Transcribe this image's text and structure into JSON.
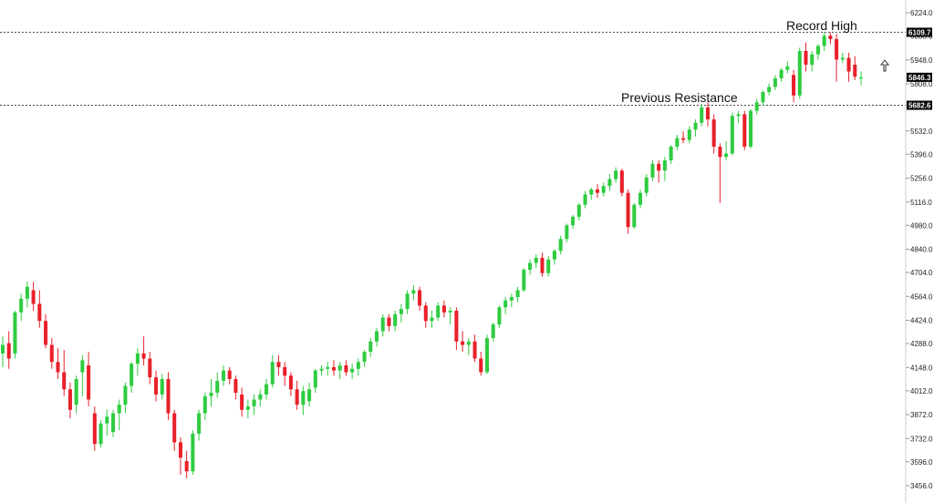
{
  "chart_data": {
    "type": "candlestick",
    "ylim": [
      3456.0,
      6224.0
    ],
    "y_ticks": [
      "6224.0",
      "6088.0",
      "5948.0",
      "5808.0",
      "5532.0",
      "5396.0",
      "5256.0",
      "5116.0",
      "4980.0",
      "4840.0",
      "4704.0",
      "4564.0",
      "4424.0",
      "4288.0",
      "4148.0",
      "4012.0",
      "3872.0",
      "3732.0",
      "3596.0",
      "3456.0"
    ],
    "levels": [
      {
        "value": 6109.7,
        "label": "6109.7",
        "annotation": "Record High"
      },
      {
        "value": 5682.6,
        "label": "5682.6",
        "annotation": "Previous Resistance"
      }
    ],
    "last_price": {
      "value": 5846.3,
      "label": "5846.3"
    },
    "up_color": "#2ecc40",
    "down_color": "#e8202a",
    "candles": [
      {
        "o": 4230,
        "h": 4330,
        "l": 4150,
        "c": 4280
      },
      {
        "o": 4290,
        "h": 4360,
        "l": 4140,
        "c": 4200
      },
      {
        "o": 4230,
        "h": 4480,
        "l": 4200,
        "c": 4470
      },
      {
        "o": 4470,
        "h": 4580,
        "l": 4420,
        "c": 4550
      },
      {
        "o": 4550,
        "h": 4650,
        "l": 4500,
        "c": 4620
      },
      {
        "o": 4600,
        "h": 4650,
        "l": 4480,
        "c": 4520
      },
      {
        "o": 4520,
        "h": 4600,
        "l": 4380,
        "c": 4420
      },
      {
        "o": 4420,
        "h": 4460,
        "l": 4260,
        "c": 4280
      },
      {
        "o": 4280,
        "h": 4320,
        "l": 4140,
        "c": 4180
      },
      {
        "o": 4180,
        "h": 4260,
        "l": 4080,
        "c": 4120
      },
      {
        "o": 4120,
        "h": 4250,
        "l": 3980,
        "c": 4020
      },
      {
        "o": 4020,
        "h": 4060,
        "l": 3850,
        "c": 3900
      },
      {
        "o": 3930,
        "h": 4100,
        "l": 3880,
        "c": 4080
      },
      {
        "o": 4120,
        "h": 4220,
        "l": 3980,
        "c": 4190
      },
      {
        "o": 4160,
        "h": 4240,
        "l": 3920,
        "c": 3960
      },
      {
        "o": 3880,
        "h": 3920,
        "l": 3660,
        "c": 3700
      },
      {
        "o": 3700,
        "h": 3840,
        "l": 3680,
        "c": 3820
      },
      {
        "o": 3820,
        "h": 3900,
        "l": 3750,
        "c": 3860
      },
      {
        "o": 3770,
        "h": 3900,
        "l": 3740,
        "c": 3880
      },
      {
        "o": 3880,
        "h": 3960,
        "l": 3780,
        "c": 3930
      },
      {
        "o": 3930,
        "h": 4060,
        "l": 3880,
        "c": 4040
      },
      {
        "o": 4040,
        "h": 4180,
        "l": 4000,
        "c": 4170
      },
      {
        "o": 4170,
        "h": 4260,
        "l": 4100,
        "c": 4230
      },
      {
        "o": 4230,
        "h": 4330,
        "l": 4160,
        "c": 4200
      },
      {
        "o": 4200,
        "h": 4240,
        "l": 4050,
        "c": 4090
      },
      {
        "o": 4090,
        "h": 4130,
        "l": 3950,
        "c": 3990
      },
      {
        "o": 3990,
        "h": 4110,
        "l": 3960,
        "c": 4080
      },
      {
        "o": 4080,
        "h": 4120,
        "l": 3840,
        "c": 3880
      },
      {
        "o": 3880,
        "h": 3900,
        "l": 3660,
        "c": 3710
      },
      {
        "o": 3710,
        "h": 3740,
        "l": 3520,
        "c": 3620
      },
      {
        "o": 3600,
        "h": 3660,
        "l": 3500,
        "c": 3540
      },
      {
        "o": 3540,
        "h": 3780,
        "l": 3520,
        "c": 3760
      },
      {
        "o": 3760,
        "h": 3900,
        "l": 3720,
        "c": 3880
      },
      {
        "o": 3880,
        "h": 4000,
        "l": 3840,
        "c": 3980
      },
      {
        "o": 3980,
        "h": 4080,
        "l": 3920,
        "c": 4000
      },
      {
        "o": 4000,
        "h": 4120,
        "l": 3970,
        "c": 4070
      },
      {
        "o": 4070,
        "h": 4160,
        "l": 4040,
        "c": 4130
      },
      {
        "o": 4130,
        "h": 4150,
        "l": 4050,
        "c": 4080
      },
      {
        "o": 4080,
        "h": 4100,
        "l": 3960,
        "c": 4000
      },
      {
        "o": 3990,
        "h": 4030,
        "l": 3860,
        "c": 3900
      },
      {
        "o": 3900,
        "h": 3960,
        "l": 3850,
        "c": 3920
      },
      {
        "o": 3920,
        "h": 3990,
        "l": 3870,
        "c": 3960
      },
      {
        "o": 3960,
        "h": 4020,
        "l": 3920,
        "c": 3990
      },
      {
        "o": 3990,
        "h": 4080,
        "l": 3960,
        "c": 4050
      },
      {
        "o": 4050,
        "h": 4220,
        "l": 4030,
        "c": 4180
      },
      {
        "o": 4180,
        "h": 4220,
        "l": 4100,
        "c": 4150
      },
      {
        "o": 4150,
        "h": 4180,
        "l": 4040,
        "c": 4100
      },
      {
        "o": 4100,
        "h": 4120,
        "l": 3980,
        "c": 4020
      },
      {
        "o": 4020,
        "h": 4070,
        "l": 3900,
        "c": 3930
      },
      {
        "o": 3930,
        "h": 4040,
        "l": 3870,
        "c": 4010
      },
      {
        "o": 3950,
        "h": 4060,
        "l": 3920,
        "c": 4020
      },
      {
        "o": 4030,
        "h": 4140,
        "l": 4000,
        "c": 4130
      },
      {
        "o": 4130,
        "h": 4160,
        "l": 4100,
        "c": 4140
      },
      {
        "o": 4140,
        "h": 4180,
        "l": 4100,
        "c": 4150
      },
      {
        "o": 4150,
        "h": 4190,
        "l": 4100,
        "c": 4130
      },
      {
        "o": 4130,
        "h": 4180,
        "l": 4080,
        "c": 4160
      },
      {
        "o": 4160,
        "h": 4190,
        "l": 4100,
        "c": 4120
      },
      {
        "o": 4120,
        "h": 4170,
        "l": 4080,
        "c": 4140
      },
      {
        "o": 4140,
        "h": 4200,
        "l": 4100,
        "c": 4180
      },
      {
        "o": 4180,
        "h": 4250,
        "l": 4150,
        "c": 4240
      },
      {
        "o": 4240,
        "h": 4320,
        "l": 4210,
        "c": 4300
      },
      {
        "o": 4300,
        "h": 4380,
        "l": 4270,
        "c": 4360
      },
      {
        "o": 4360,
        "h": 4460,
        "l": 4330,
        "c": 4440
      },
      {
        "o": 4440,
        "h": 4460,
        "l": 4360,
        "c": 4390
      },
      {
        "o": 4390,
        "h": 4480,
        "l": 4360,
        "c": 4460
      },
      {
        "o": 4460,
        "h": 4520,
        "l": 4410,
        "c": 4490
      },
      {
        "o": 4490,
        "h": 4600,
        "l": 4460,
        "c": 4580
      },
      {
        "o": 4580,
        "h": 4630,
        "l": 4540,
        "c": 4600
      },
      {
        "o": 4600,
        "h": 4620,
        "l": 4480,
        "c": 4510
      },
      {
        "o": 4510,
        "h": 4530,
        "l": 4380,
        "c": 4420
      },
      {
        "o": 4420,
        "h": 4480,
        "l": 4380,
        "c": 4440
      },
      {
        "o": 4440,
        "h": 4530,
        "l": 4420,
        "c": 4510
      },
      {
        "o": 4510,
        "h": 4540,
        "l": 4440,
        "c": 4470
      },
      {
        "o": 4470,
        "h": 4500,
        "l": 4400,
        "c": 4480
      },
      {
        "o": 4480,
        "h": 4500,
        "l": 4250,
        "c": 4300
      },
      {
        "o": 4300,
        "h": 4360,
        "l": 4240,
        "c": 4280
      },
      {
        "o": 4280,
        "h": 4320,
        "l": 4220,
        "c": 4300
      },
      {
        "o": 4300,
        "h": 4340,
        "l": 4180,
        "c": 4200
      },
      {
        "o": 4200,
        "h": 4240,
        "l": 4100,
        "c": 4120
      },
      {
        "o": 4120,
        "h": 4340,
        "l": 4110,
        "c": 4320
      },
      {
        "o": 4320,
        "h": 4410,
        "l": 4300,
        "c": 4400
      },
      {
        "o": 4400,
        "h": 4510,
        "l": 4380,
        "c": 4500
      },
      {
        "o": 4500,
        "h": 4560,
        "l": 4460,
        "c": 4540
      },
      {
        "o": 4540,
        "h": 4580,
        "l": 4500,
        "c": 4560
      },
      {
        "o": 4560,
        "h": 4620,
        "l": 4530,
        "c": 4600
      },
      {
        "o": 4600,
        "h": 4730,
        "l": 4590,
        "c": 4720
      },
      {
        "o": 4720,
        "h": 4780,
        "l": 4690,
        "c": 4760
      },
      {
        "o": 4760,
        "h": 4810,
        "l": 4730,
        "c": 4790
      },
      {
        "o": 4790,
        "h": 4820,
        "l": 4680,
        "c": 4700
      },
      {
        "o": 4700,
        "h": 4800,
        "l": 4680,
        "c": 4780
      },
      {
        "o": 4780,
        "h": 4840,
        "l": 4750,
        "c": 4830
      },
      {
        "o": 4830,
        "h": 4920,
        "l": 4810,
        "c": 4900
      },
      {
        "o": 4900,
        "h": 4990,
        "l": 4880,
        "c": 4980
      },
      {
        "o": 4980,
        "h": 5040,
        "l": 4960,
        "c": 5030
      },
      {
        "o": 5030,
        "h": 5110,
        "l": 5010,
        "c": 5100
      },
      {
        "o": 5100,
        "h": 5180,
        "l": 5080,
        "c": 5160
      },
      {
        "o": 5160,
        "h": 5200,
        "l": 5130,
        "c": 5190
      },
      {
        "o": 5190,
        "h": 5220,
        "l": 5140,
        "c": 5170
      },
      {
        "o": 5170,
        "h": 5230,
        "l": 5150,
        "c": 5210
      },
      {
        "o": 5210,
        "h": 5280,
        "l": 5180,
        "c": 5250
      },
      {
        "o": 5250,
        "h": 5320,
        "l": 5230,
        "c": 5300
      },
      {
        "o": 5300,
        "h": 5310,
        "l": 5150,
        "c": 5170
      },
      {
        "o": 5170,
        "h": 5190,
        "l": 4930,
        "c": 4970
      },
      {
        "o": 4970,
        "h": 5110,
        "l": 4960,
        "c": 5100
      },
      {
        "o": 5100,
        "h": 5190,
        "l": 5080,
        "c": 5170
      },
      {
        "o": 5170,
        "h": 5280,
        "l": 5150,
        "c": 5260
      },
      {
        "o": 5260,
        "h": 5360,
        "l": 5240,
        "c": 5340
      },
      {
        "o": 5340,
        "h": 5360,
        "l": 5230,
        "c": 5300
      },
      {
        "o": 5300,
        "h": 5380,
        "l": 5240,
        "c": 5360
      },
      {
        "o": 5360,
        "h": 5450,
        "l": 5340,
        "c": 5440
      },
      {
        "o": 5440,
        "h": 5510,
        "l": 5420,
        "c": 5490
      },
      {
        "o": 5490,
        "h": 5530,
        "l": 5460,
        "c": 5480
      },
      {
        "o": 5480,
        "h": 5560,
        "l": 5460,
        "c": 5540
      },
      {
        "o": 5540,
        "h": 5600,
        "l": 5500,
        "c": 5580
      },
      {
        "o": 5580,
        "h": 5690,
        "l": 5560,
        "c": 5670
      },
      {
        "o": 5670,
        "h": 5700,
        "l": 5560,
        "c": 5600
      },
      {
        "o": 5600,
        "h": 5630,
        "l": 5400,
        "c": 5440
      },
      {
        "o": 5440,
        "h": 5460,
        "l": 5110,
        "c": 5380
      },
      {
        "o": 5380,
        "h": 5470,
        "l": 5360,
        "c": 5400
      },
      {
        "o": 5400,
        "h": 5640,
        "l": 5390,
        "c": 5620
      },
      {
        "o": 5620,
        "h": 5650,
        "l": 5580,
        "c": 5630
      },
      {
        "o": 5630,
        "h": 5650,
        "l": 5420,
        "c": 5440
      },
      {
        "o": 5440,
        "h": 5660,
        "l": 5430,
        "c": 5650
      },
      {
        "o": 5650,
        "h": 5720,
        "l": 5630,
        "c": 5700
      },
      {
        "o": 5700,
        "h": 5770,
        "l": 5680,
        "c": 5760
      },
      {
        "o": 5760,
        "h": 5810,
        "l": 5740,
        "c": 5790
      },
      {
        "o": 5790,
        "h": 5860,
        "l": 5770,
        "c": 5840
      },
      {
        "o": 5840,
        "h": 5900,
        "l": 5820,
        "c": 5890
      },
      {
        "o": 5890,
        "h": 5940,
        "l": 5870,
        "c": 5910
      },
      {
        "o": 5860,
        "h": 5890,
        "l": 5700,
        "c": 5740
      },
      {
        "o": 5740,
        "h": 6020,
        "l": 5720,
        "c": 6000
      },
      {
        "o": 6000,
        "h": 6050,
        "l": 5880,
        "c": 5920
      },
      {
        "o": 5920,
        "h": 6000,
        "l": 5880,
        "c": 5980
      },
      {
        "o": 5980,
        "h": 6040,
        "l": 5950,
        "c": 6030
      },
      {
        "o": 6030,
        "h": 6110,
        "l": 6000,
        "c": 6090
      },
      {
        "o": 6090,
        "h": 6110,
        "l": 6040,
        "c": 6070
      },
      {
        "o": 6070,
        "h": 6100,
        "l": 5820,
        "c": 5950
      },
      {
        "o": 5950,
        "h": 5990,
        "l": 5930,
        "c": 5960
      },
      {
        "o": 5960,
        "h": 5990,
        "l": 5820,
        "c": 5880
      },
      {
        "o": 5920,
        "h": 5970,
        "l": 5830,
        "c": 5850
      },
      {
        "o": 5840,
        "h": 5880,
        "l": 5800,
        "c": 5846
      }
    ]
  }
}
